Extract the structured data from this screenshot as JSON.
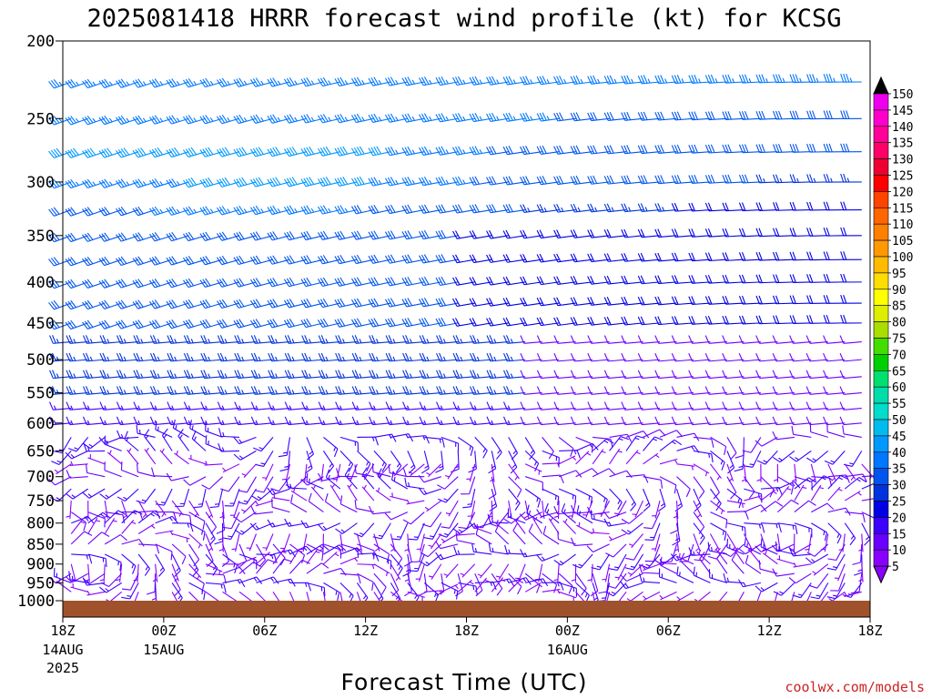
{
  "chart_data": {
    "type": "wind-barb time-height profile",
    "title": "2025081418 HRRR forecast wind profile (kt) for KCSG",
    "xlabel": "Forecast Time (UTC)",
    "ylabel": "",
    "credit": "coolwx.com/models",
    "y_axis": {
      "ticks": [
        "200",
        "250",
        "300",
        "350",
        "400",
        "450",
        "500",
        "550",
        "600",
        "650",
        "700",
        "750",
        "800",
        "850",
        "900",
        "950",
        "1000"
      ],
      "levels_hpa": [
        200,
        250,
        300,
        350,
        400,
        450,
        500,
        550,
        600,
        650,
        700,
        750,
        800,
        850,
        900,
        950,
        1000
      ],
      "range": [
        200,
        1000
      ]
    },
    "x_axis": {
      "range_hours": [
        0,
        48
      ],
      "ticks": [
        {
          "hour": 0,
          "label": "18Z",
          "sub": "14AUG",
          "sub2": "2025"
        },
        {
          "hour": 6,
          "label": "00Z",
          "sub": "15AUG",
          "sub2": ""
        },
        {
          "hour": 12,
          "label": "06Z",
          "sub": "",
          "sub2": ""
        },
        {
          "hour": 18,
          "label": "12Z",
          "sub": "",
          "sub2": ""
        },
        {
          "hour": 24,
          "label": "18Z",
          "sub": "",
          "sub2": ""
        },
        {
          "hour": 30,
          "label": "00Z",
          "sub": "16AUG",
          "sub2": ""
        },
        {
          "hour": 36,
          "label": "06Z",
          "sub": "",
          "sub2": ""
        },
        {
          "hour": 42,
          "label": "12Z",
          "sub": "",
          "sub2": ""
        },
        {
          "hour": 48,
          "label": "18Z",
          "sub": "",
          "sub2": ""
        }
      ]
    },
    "colorbar": {
      "units": "kt",
      "labels": [
        "5",
        "10",
        "15",
        "20",
        "25",
        "30",
        "35",
        "40",
        "45",
        "50",
        "55",
        "60",
        "65",
        "70",
        "75",
        "80",
        "85",
        "90",
        "95",
        "100",
        "105",
        "110",
        "115",
        "120",
        "125",
        "130",
        "135",
        "140",
        "145",
        "150"
      ],
      "colors": [
        "#8a00ff",
        "#6a00ff",
        "#3c00ff",
        "#0000e6",
        "#0033dd",
        "#0055ee",
        "#0077ff",
        "#0099ff",
        "#00bbee",
        "#00ddcc",
        "#00ddaa",
        "#00e070",
        "#00d000",
        "#44dd00",
        "#aadd00",
        "#ddee00",
        "#ffff00",
        "#ffdd00",
        "#ffbb00",
        "#ff9900",
        "#ff8000",
        "#ff6600",
        "#ff4400",
        "#ff0000",
        "#ee0033",
        "#ff0066",
        "#ff0099",
        "#ff00cc",
        "#ee00ee",
        "#000000"
      ]
    },
    "barb_levels_hpa": [
      225,
      250,
      275,
      300,
      325,
      350,
      375,
      400,
      425,
      450,
      475,
      500,
      525,
      550,
      575,
      600,
      625,
      650,
      675,
      700,
      725,
      750,
      775,
      800,
      825,
      850,
      875,
      900,
      925,
      950,
      975
    ],
    "barb_hours": [
      0,
      1,
      2,
      3,
      4,
      5,
      6,
      7,
      8,
      9,
      10,
      11,
      12,
      13,
      14,
      15,
      16,
      17,
      18,
      19,
      20,
      21,
      22,
      23,
      24,
      25,
      26,
      27,
      28,
      29,
      30,
      31,
      32,
      33,
      34,
      35,
      36,
      37,
      38,
      39,
      40,
      41,
      42,
      43,
      44,
      45,
      46,
      47
    ],
    "upper_speed_kt": [
      [
        35,
        35,
        35,
        35,
        35,
        35,
        35,
        35,
        35,
        35,
        35,
        35,
        35,
        35,
        35,
        35,
        35,
        35,
        35,
        35,
        35,
        35,
        35,
        35,
        35,
        35,
        35,
        35,
        35,
        35,
        35,
        35,
        35,
        35,
        35,
        35,
        35,
        35,
        35,
        35,
        35,
        35,
        35,
        35,
        35,
        35,
        35,
        35
      ],
      [
        35,
        35,
        35,
        35,
        35,
        35,
        35,
        35,
        35,
        35,
        35,
        35,
        35,
        35,
        35,
        35,
        35,
        35,
        35,
        35,
        35,
        35,
        35,
        35,
        35,
        35,
        35,
        35,
        35,
        35,
        30,
        30,
        30,
        30,
        30,
        30,
        30,
        30,
        30,
        30,
        30,
        30,
        30,
        30,
        30,
        30,
        30,
        30
      ],
      [
        40,
        40,
        40,
        40,
        40,
        40,
        40,
        40,
        40,
        40,
        40,
        40,
        40,
        40,
        40,
        40,
        40,
        40,
        40,
        40,
        35,
        35,
        35,
        35,
        35,
        35,
        30,
        30,
        30,
        30,
        30,
        30,
        30,
        30,
        30,
        30,
        30,
        30,
        30,
        30,
        30,
        30,
        30,
        30,
        30,
        30,
        30,
        30
      ],
      [
        35,
        35,
        35,
        35,
        35,
        35,
        35,
        35,
        40,
        40,
        40,
        40,
        40,
        40,
        40,
        40,
        40,
        40,
        40,
        35,
        35,
        35,
        35,
        35,
        35,
        30,
        30,
        30,
        30,
        30,
        30,
        30,
        30,
        30,
        30,
        30,
        30,
        30,
        30,
        30,
        30,
        30,
        25,
        25,
        25,
        25,
        25,
        25
      ],
      [
        30,
        30,
        30,
        30,
        30,
        30,
        35,
        35,
        35,
        35,
        35,
        35,
        35,
        35,
        35,
        35,
        35,
        35,
        30,
        30,
        30,
        30,
        30,
        30,
        30,
        30,
        30,
        30,
        25,
        25,
        25,
        25,
        25,
        25,
        25,
        25,
        25,
        20,
        20,
        20,
        20,
        20,
        20,
        20,
        20,
        20,
        20,
        20
      ]
    ]
  }
}
